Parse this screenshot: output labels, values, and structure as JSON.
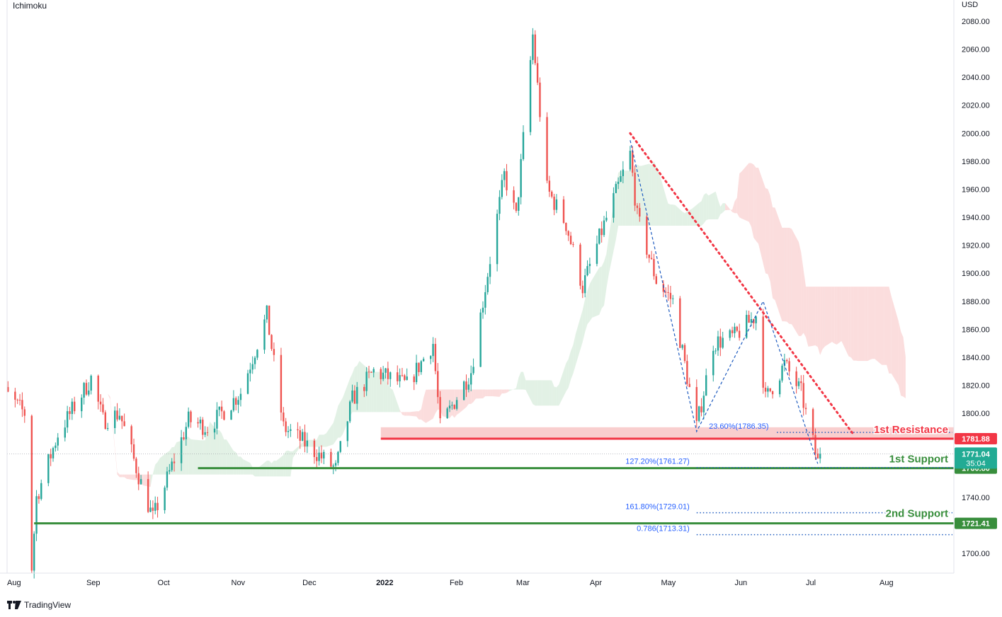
{
  "indicator_label": "Ichimoku",
  "currency_label": "USD",
  "brand": "TradingView",
  "colors": {
    "up": "#26a69a",
    "down": "#ef5350",
    "resistance": "#f23645",
    "support": "#388e3c",
    "fib": "#1e5bbf",
    "fib_text": "#2962ff",
    "cloud_red": "#f8c6c6",
    "cloud_green": "#cfe8d3",
    "last_price": "#22ab94"
  },
  "chart_data": {
    "type": "candlestick",
    "y_axis": {
      "min": 1685,
      "max": 2090,
      "ticks": [
        1700,
        1720,
        1740,
        1760,
        1780,
        1800,
        1820,
        1840,
        1860,
        1880,
        1900,
        1920,
        1940,
        1960,
        1980,
        2000,
        2020,
        2040,
        2060,
        2080
      ],
      "tick_labels": [
        "1700.00",
        "1720.00",
        "1740.00",
        "1760.00",
        "1780.00",
        "1800.00",
        "1820.00",
        "1840.00",
        "1860.00",
        "1880.00",
        "1900.00",
        "1920.00",
        "1940.00",
        "1960.00",
        "1980.00",
        "2000.00",
        "2020.00",
        "2040.00",
        "2060.00",
        "2080.00"
      ]
    },
    "x_axis": {
      "labels": [
        "Aug",
        "Sep",
        "Oct",
        "Nov",
        "Dec",
        "2022",
        "Feb",
        "Mar",
        "Apr",
        "May",
        "Jun",
        "Jul",
        "Aug"
      ],
      "label_dates": [
        "2021-08-01",
        "2021-09-01",
        "2021-10-01",
        "2021-11-01",
        "2021-12-01",
        "2022-01-01",
        "2022-02-01",
        "2022-03-01",
        "2022-04-01",
        "2022-05-01",
        "2022-06-01",
        "2022-07-01",
        "2022-08-01"
      ],
      "bold_label": "2022"
    },
    "price_path": [
      [
        "2021-07-23",
        1825
      ],
      [
        "2021-08-06",
        1800
      ],
      [
        "2021-08-09",
        1690
      ],
      [
        "2021-08-11",
        1740
      ],
      [
        "2021-08-20",
        1785
      ],
      [
        "2021-09-03",
        1825
      ],
      [
        "2021-09-08",
        1795
      ],
      [
        "2021-09-15",
        1800
      ],
      [
        "2021-09-24",
        1750
      ],
      [
        "2021-09-29",
        1725
      ],
      [
        "2021-10-14",
        1795
      ],
      [
        "2021-10-22",
        1790
      ],
      [
        "2021-10-28",
        1800
      ],
      [
        "2021-11-05",
        1815
      ],
      [
        "2021-11-16",
        1870
      ],
      [
        "2021-11-23",
        1790
      ],
      [
        "2021-12-01",
        1780
      ],
      [
        "2021-12-15",
        1760
      ],
      [
        "2021-12-22",
        1810
      ],
      [
        "2021-12-31",
        1830
      ],
      [
        "2022-01-14",
        1820
      ],
      [
        "2022-01-25",
        1850
      ],
      [
        "2022-01-28",
        1790
      ],
      [
        "2022-02-10",
        1830
      ],
      [
        "2022-02-24",
        1970
      ],
      [
        "2022-03-01",
        1940
      ],
      [
        "2022-03-08",
        2070
      ],
      [
        "2022-03-14",
        1960
      ],
      [
        "2022-03-22",
        1935
      ],
      [
        "2022-03-29",
        1890
      ],
      [
        "2022-04-06",
        1930
      ],
      [
        "2022-04-18",
        1985
      ],
      [
        "2022-04-21",
        1940
      ],
      [
        "2022-04-29",
        1895
      ],
      [
        "2022-05-06",
        1880
      ],
      [
        "2022-05-16",
        1790
      ],
      [
        "2022-05-23",
        1850
      ],
      [
        "2022-06-01",
        1855
      ],
      [
        "2022-06-10",
        1870
      ],
      [
        "2022-06-14",
        1810
      ],
      [
        "2022-06-22",
        1835
      ],
      [
        "2022-06-29",
        1815
      ],
      [
        "2022-07-01",
        1800
      ],
      [
        "2022-07-06",
        1765
      ],
      [
        "2022-07-07",
        1771
      ]
    ],
    "last_price": {
      "value": "1771.04",
      "countdown": "35:04"
    },
    "levels": [
      {
        "name": "1st Resistance",
        "value": 1781.88,
        "value_label": "1781.88",
        "start": "2022-01-03"
      },
      {
        "name": "1st Support",
        "value": 1760.8,
        "value_label": "1760.80",
        "start": "2021-10-18"
      },
      {
        "name": "2nd Support",
        "value": 1721.41,
        "value_label": "1721.41",
        "start": "2021-08-10"
      }
    ],
    "resistance_zone": {
      "from": 1781.88,
      "to": 1787.0,
      "start": "2022-01-03"
    },
    "fib_labels": [
      {
        "text": "23.60%(1786.35)",
        "value": 1786.35,
        "date": "2022-05-17"
      },
      {
        "text": "127.20%(1761.27)",
        "value": 1761.27,
        "date": "2022-05-16"
      },
      {
        "text": "161.80%(1729.01)",
        "value": 1729.01,
        "date": "2022-05-16"
      },
      {
        "text": "0.786(1713.31)",
        "value": 1713.31,
        "date": "2022-05-16"
      }
    ],
    "trendline": [
      [
        "2022-04-18",
        2000
      ],
      [
        "2022-07-21",
        1785
      ]
    ],
    "abcd_pattern": [
      [
        "2022-04-18",
        1995
      ],
      [
        "2022-05-16",
        1787
      ],
      [
        "2022-06-13",
        1880
      ],
      [
        "2022-07-06",
        1764
      ]
    ]
  }
}
